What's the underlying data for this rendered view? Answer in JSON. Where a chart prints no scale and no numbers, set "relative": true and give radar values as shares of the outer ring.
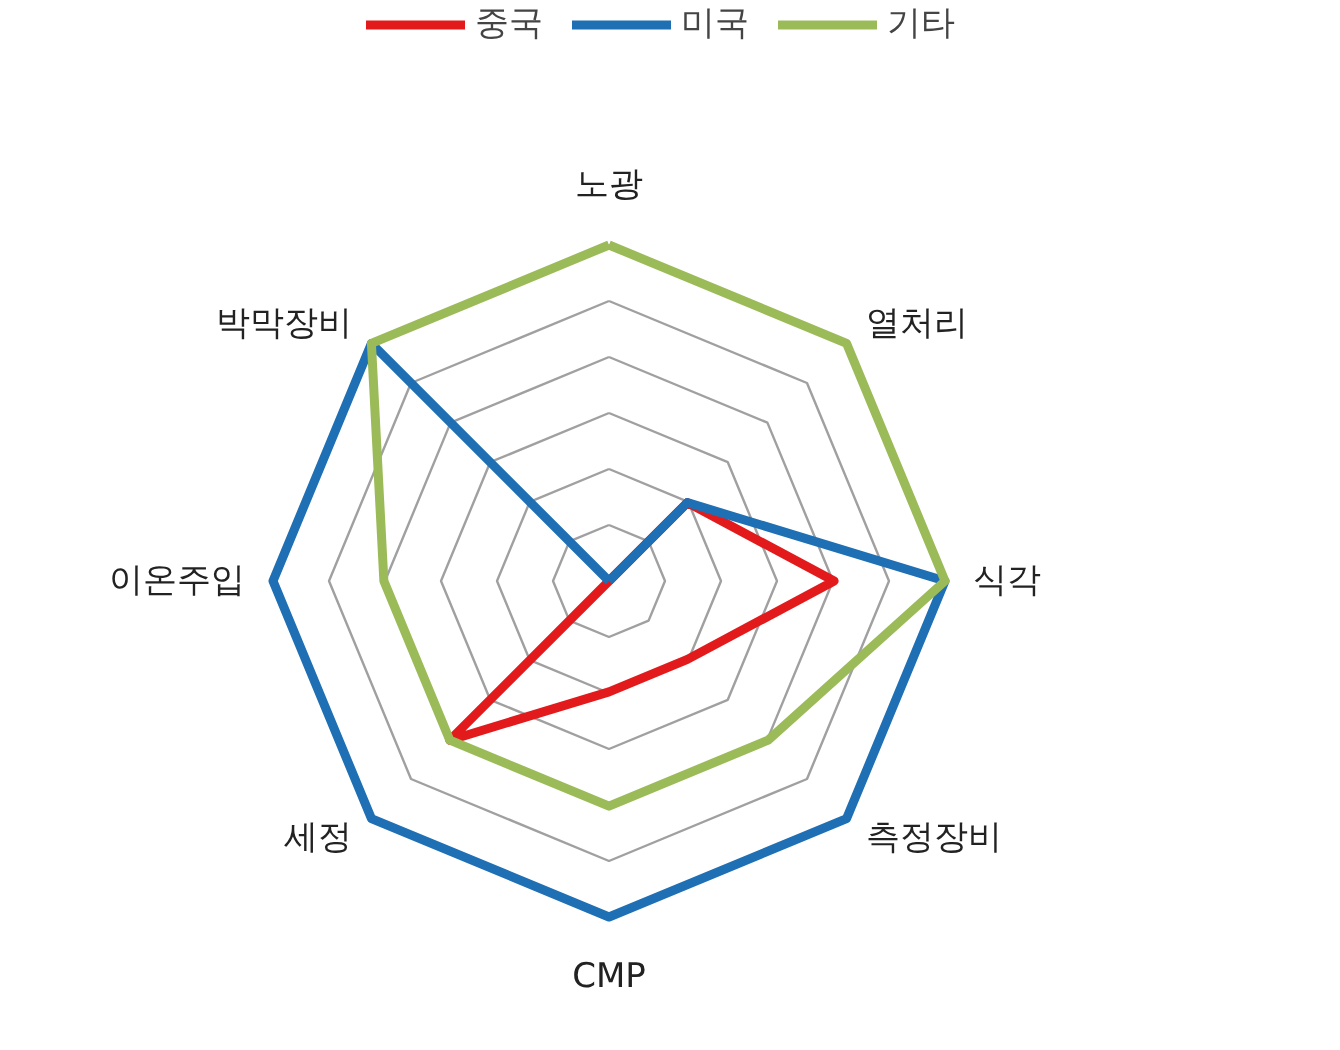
{
  "chart_data": {
    "type": "radar",
    "relative": true,
    "categories": [
      "노광",
      "열처리",
      "식각",
      "측정장비",
      "CMP",
      "세정",
      "이온주입",
      "박막장비"
    ],
    "series": [
      {
        "name": "중국",
        "color": "#e31a1c",
        "values": [
          0,
          0.33,
          0.67,
          0.33,
          0.33,
          0.67,
          0,
          0
        ]
      },
      {
        "name": "미국",
        "color": "#1f6fb4",
        "values": [
          0,
          0.33,
          1,
          1,
          1,
          1,
          1,
          1
        ]
      },
      {
        "name": "기타",
        "color": "#9bbb59",
        "values": [
          1,
          1,
          1,
          0.67,
          0.67,
          0.67,
          0.67,
          1
        ]
      }
    ],
    "grid": true,
    "legend": "top"
  }
}
